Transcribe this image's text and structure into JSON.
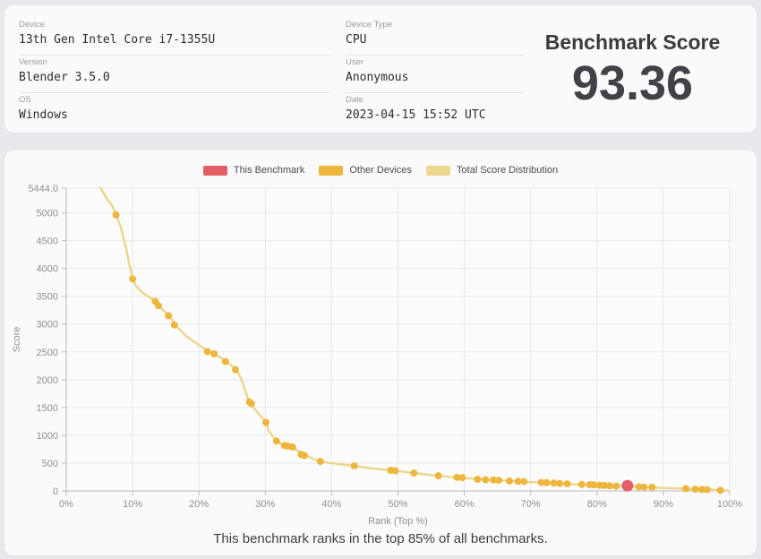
{
  "header": {
    "fields": [
      {
        "label": "Device",
        "value": "13th Gen Intel Core i7-1355U"
      },
      {
        "label": "Device Type",
        "value": "CPU"
      },
      {
        "label": "Version",
        "value": "Blender 3.5.0"
      },
      {
        "label": "User",
        "value": "Anonymous"
      },
      {
        "label": "OS",
        "value": "Windows"
      },
      {
        "label": "Date",
        "value": "2023-04-15 15:52 UTC"
      }
    ],
    "score_title": "Benchmark Score",
    "score_value": "93.36"
  },
  "legend": {
    "this_benchmark": "This Benchmark",
    "other_devices": "Other Devices",
    "total_distribution": "Total Score Distribution"
  },
  "caption": "This benchmark ranks in the top 85% of all benchmarks.",
  "chart_data": {
    "type": "line",
    "title": "",
    "xlabel": "Rank (Top %)",
    "ylabel": "Score",
    "xlim": [
      0,
      100
    ],
    "ylim": [
      0,
      5444
    ],
    "y_max_label": "5444.0",
    "y_ticks": [
      0,
      500,
      1000,
      1500,
      2000,
      2500,
      3000,
      3500,
      4000,
      4500,
      5000
    ],
    "x_ticks": [
      "0%",
      "10%",
      "20%",
      "30%",
      "40%",
      "50%",
      "60%",
      "70%",
      "80%",
      "90%",
      "100%"
    ],
    "grid": true,
    "legend_position": "top",
    "colors": {
      "this_benchmark": "#e25d66",
      "other_devices": "#eeb63d",
      "distribution": "#ecd78f",
      "grid": "#e7e7ea",
      "axis": "#b9b9bf",
      "tick_text": "#8f8f94"
    },
    "series": [
      {
        "name": "Total Score Distribution",
        "kind": "line",
        "points": [
          [
            5.2,
            5444
          ],
          [
            5.6,
            5360
          ],
          [
            6.2,
            5240
          ],
          [
            6.8,
            5150
          ],
          [
            7.2,
            5060
          ],
          [
            7.5,
            4965
          ],
          [
            7.9,
            4840
          ],
          [
            8.2,
            4760
          ],
          [
            8.6,
            4570
          ],
          [
            9.0,
            4380
          ],
          [
            9.3,
            4200
          ],
          [
            9.6,
            4020
          ],
          [
            9.9,
            3870
          ],
          [
            10.1,
            3800
          ],
          [
            10.5,
            3690
          ],
          [
            11.1,
            3600
          ],
          [
            11.9,
            3530
          ],
          [
            12.7,
            3470
          ],
          [
            13.4,
            3415
          ],
          [
            13.9,
            3335
          ],
          [
            14.6,
            3250
          ],
          [
            15.4,
            3155
          ],
          [
            16.0,
            3070
          ],
          [
            16.4,
            2985
          ],
          [
            17.1,
            2900
          ],
          [
            17.8,
            2815
          ],
          [
            18.4,
            2755
          ],
          [
            19.2,
            2690
          ],
          [
            20.1,
            2615
          ],
          [
            20.9,
            2545
          ],
          [
            21.4,
            2505
          ],
          [
            22.3,
            2465
          ],
          [
            23.2,
            2400
          ],
          [
            24.1,
            2330
          ],
          [
            24.9,
            2255
          ],
          [
            25.6,
            2180
          ],
          [
            26.1,
            2080
          ],
          [
            26.5,
            1970
          ],
          [
            26.9,
            1830
          ],
          [
            27.4,
            1665
          ],
          [
            27.8,
            1580
          ],
          [
            28.4,
            1475
          ],
          [
            29.1,
            1370
          ],
          [
            29.8,
            1280
          ],
          [
            30.2,
            1225
          ],
          [
            30.5,
            1085
          ],
          [
            31.1,
            980
          ],
          [
            31.8,
            895
          ],
          [
            32.5,
            835
          ],
          [
            33.4,
            805
          ],
          [
            34.3,
            785
          ],
          [
            35.1,
            700
          ],
          [
            35.7,
            645
          ],
          [
            36.5,
            615
          ],
          [
            37.4,
            565
          ],
          [
            38.4,
            530
          ],
          [
            39.6,
            505
          ],
          [
            40.8,
            488
          ],
          [
            42.1,
            468
          ],
          [
            43.5,
            450
          ],
          [
            45.1,
            420
          ],
          [
            46.8,
            396
          ],
          [
            48.4,
            376
          ],
          [
            49.6,
            364
          ],
          [
            51.1,
            340
          ],
          [
            52.6,
            318
          ],
          [
            54.4,
            294
          ],
          [
            56.3,
            270
          ],
          [
            57.9,
            252
          ],
          [
            59.4,
            238
          ],
          [
            61.1,
            220
          ],
          [
            62.3,
            208
          ],
          [
            63.6,
            200
          ],
          [
            65.1,
            190
          ],
          [
            66.9,
            178
          ],
          [
            68.4,
            170
          ],
          [
            70.1,
            158
          ],
          [
            71.8,
            148
          ],
          [
            73.4,
            138
          ],
          [
            75.1,
            128
          ],
          [
            76.8,
            118
          ],
          [
            78.4,
            111
          ],
          [
            80.1,
            103
          ],
          [
            81.6,
            96
          ],
          [
            83.1,
            90
          ],
          [
            84.6,
            85
          ],
          [
            86.3,
            74
          ],
          [
            87.2,
            70
          ],
          [
            88.4,
            63
          ],
          [
            90.1,
            52
          ],
          [
            91.6,
            46
          ],
          [
            93.5,
            39
          ],
          [
            94.9,
            28
          ],
          [
            96.0,
            25
          ],
          [
            96.7,
            22
          ],
          [
            98.0,
            14
          ],
          [
            99.0,
            8
          ],
          [
            99.8,
            5
          ]
        ]
      },
      {
        "name": "Other Devices",
        "kind": "scatter",
        "points": [
          [
            7.5,
            4963
          ],
          [
            10.0,
            3810
          ],
          [
            13.4,
            3410
          ],
          [
            13.9,
            3330
          ],
          [
            15.4,
            3150
          ],
          [
            16.3,
            2985
          ],
          [
            21.3,
            2505
          ],
          [
            22.3,
            2465
          ],
          [
            24.0,
            2325
          ],
          [
            25.5,
            2180
          ],
          [
            27.6,
            1600
          ],
          [
            27.9,
            1570
          ],
          [
            30.1,
            1230
          ],
          [
            31.7,
            895
          ],
          [
            32.9,
            815
          ],
          [
            33.4,
            805
          ],
          [
            34.1,
            790
          ],
          [
            35.4,
            655
          ],
          [
            35.9,
            635
          ],
          [
            38.3,
            530
          ],
          [
            43.4,
            450
          ],
          [
            48.9,
            370
          ],
          [
            49.6,
            363
          ],
          [
            52.4,
            320
          ],
          [
            56.1,
            272
          ],
          [
            58.9,
            245
          ],
          [
            59.7,
            238
          ],
          [
            62.0,
            210
          ],
          [
            63.2,
            202
          ],
          [
            64.4,
            196
          ],
          [
            65.2,
            192
          ],
          [
            66.8,
            178
          ],
          [
            68.1,
            172
          ],
          [
            69.0,
            168
          ],
          [
            71.6,
            152
          ],
          [
            72.4,
            148
          ],
          [
            73.5,
            142
          ],
          [
            74.4,
            134
          ],
          [
            75.5,
            128
          ],
          [
            77.7,
            116
          ],
          [
            78.9,
            112
          ],
          [
            79.5,
            108
          ],
          [
            80.4,
            102
          ],
          [
            81.1,
            98
          ],
          [
            81.9,
            92
          ],
          [
            82.9,
            86
          ],
          [
            86.3,
            74
          ],
          [
            87.1,
            70
          ],
          [
            88.3,
            64
          ],
          [
            93.4,
            42
          ],
          [
            94.8,
            30
          ],
          [
            95.8,
            26
          ],
          [
            96.6,
            23
          ],
          [
            98.6,
            12
          ]
        ]
      },
      {
        "name": "This Benchmark",
        "kind": "scatter",
        "points": [
          [
            84.6,
            93.36
          ]
        ]
      }
    ]
  }
}
